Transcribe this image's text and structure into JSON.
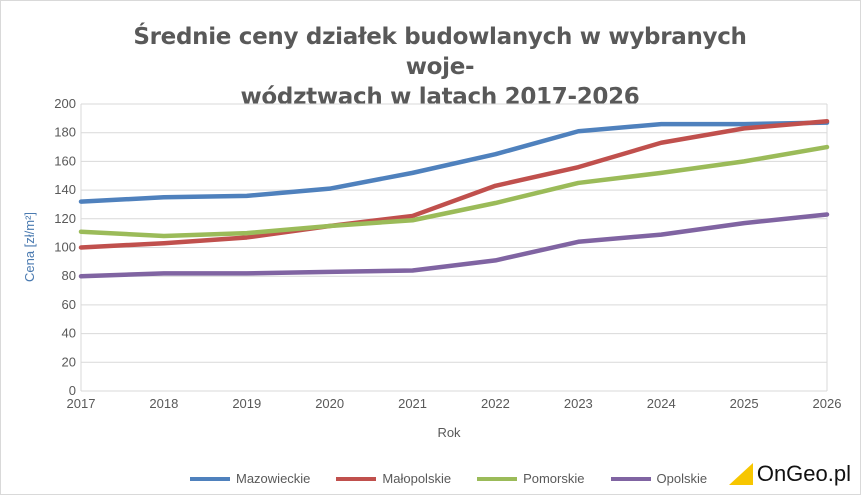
{
  "chart_data": {
    "type": "line",
    "title": "Średnie ceny działek budowlanych w wybranych woje-wództwach w latach 2017-2026",
    "title_lines": [
      "Średnie ceny działek budowlanych w wybranych woje-",
      "wództwach w latach 2017-2026"
    ],
    "xlabel": "Rok",
    "ylabel": "Cena [zł/m²]",
    "x": [
      "2017",
      "2018",
      "2019",
      "2020",
      "2021",
      "2022",
      "2023",
      "2024",
      "2025",
      "2026"
    ],
    "ylim": [
      0,
      200
    ],
    "yticks": [
      "0",
      "20",
      "40",
      "60",
      "80",
      "100",
      "120",
      "140",
      "160",
      "180",
      "200"
    ],
    "grid": true,
    "legend": "bottom",
    "series": [
      {
        "name": "Mazowieckie",
        "color": "#4f81bd",
        "values": [
          132,
          135,
          136,
          141,
          152,
          165,
          181,
          186,
          186,
          187
        ]
      },
      {
        "name": "Małopolskie",
        "color": "#c0504d",
        "values": [
          100,
          103,
          107,
          115,
          122,
          143,
          156,
          173,
          183,
          188
        ]
      },
      {
        "name": "Pomorskie",
        "color": "#9bbb59",
        "values": [
          111,
          108,
          110,
          115,
          119,
          131,
          145,
          152,
          160,
          170
        ]
      },
      {
        "name": "Opolskie",
        "color": "#8064a2",
        "values": [
          80,
          82,
          82,
          83,
          84,
          91,
          104,
          109,
          117,
          123
        ]
      }
    ]
  },
  "logo": {
    "text": "OnGeo.pl",
    "accent": "#f7c600"
  }
}
